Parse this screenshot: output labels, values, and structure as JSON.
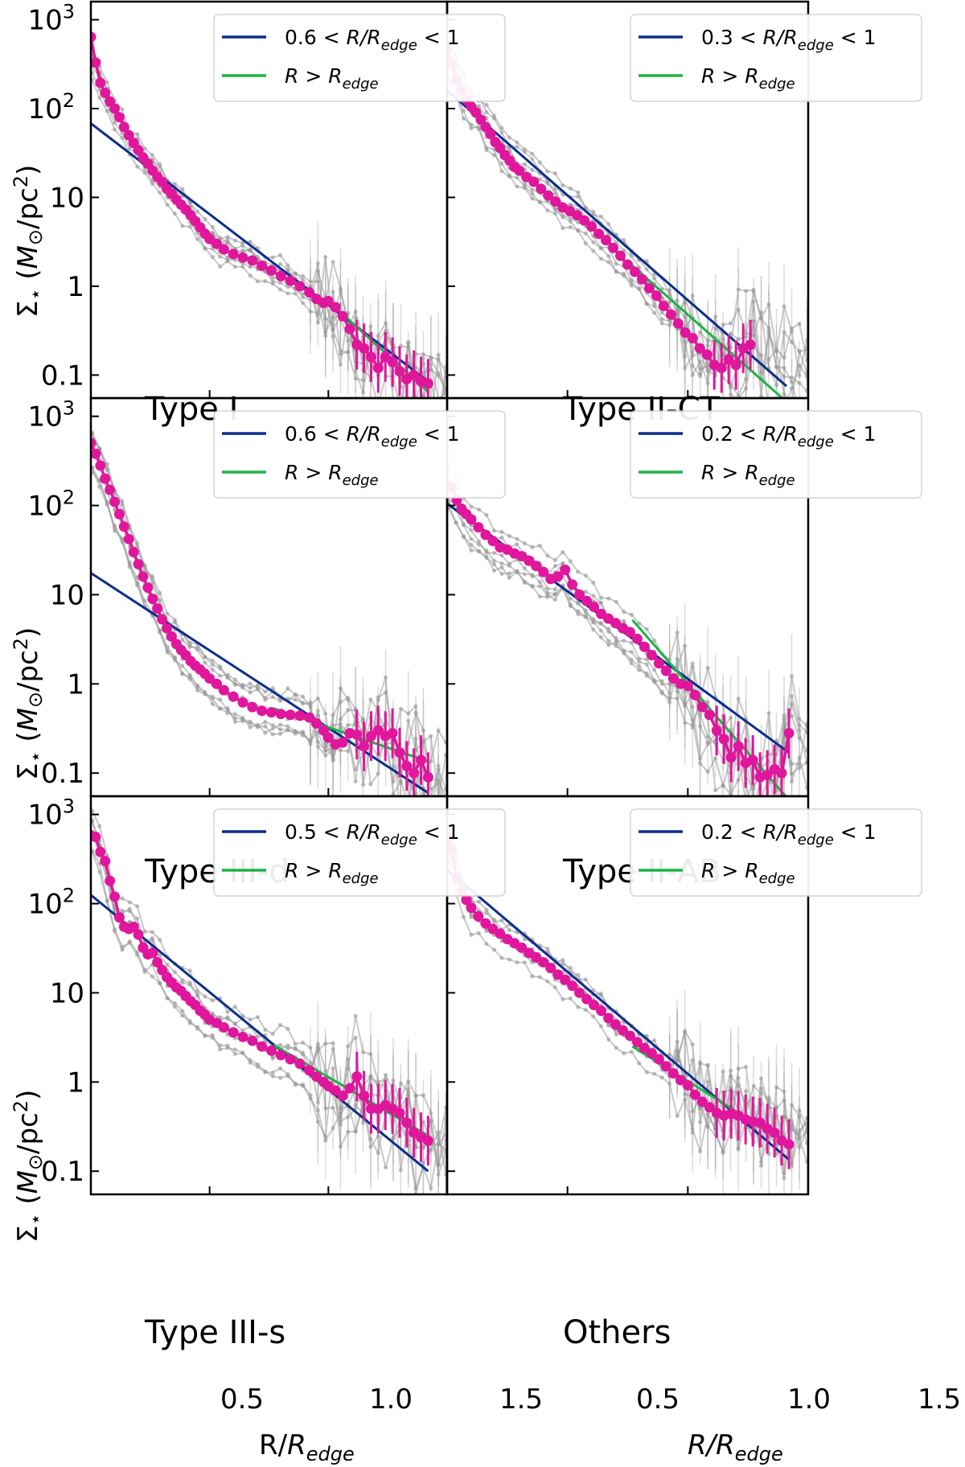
{
  "figure": {
    "ylabel": "Σ⋆ (M⊙/pc²)",
    "ylabel_main": "Σ",
    "ylabel_star": "⋆",
    "ylabel_rest1": " (",
    "ylabel_M": "M",
    "ylabel_sun": "⊙",
    "ylabel_rest2": "/pc",
    "ylabel_sup": "2",
    "ylabel_rest3": ")",
    "xlabel_left_R": "R/",
    "xlabel_right_R": "R/",
    "xlabel_R": "R",
    "xlabel_sub": "edge",
    "ytick_labels": [
      "0.1",
      "1",
      "10",
      "10",
      "10"
    ],
    "ytick_sup2": "2",
    "ytick_sup3": "3",
    "xtick_labels": [
      "0.5",
      "1.0",
      "1.5"
    ],
    "legend_blue_suffix": " < R/R",
    "legend_edge_sub": "edge",
    "legend_lt1": " < 1",
    "legend_green_prefix": "R > R"
  },
  "colors": {
    "blue": "#0d2d8c",
    "green": "#1db346",
    "magenta": "#e0169c",
    "gray": "#9a9a9a"
  },
  "chart_data": [
    {
      "type": "line",
      "panel": "Type I",
      "legend": {
        "blue_lo": "0.6",
        "blue": "0.6 < R/Redge < 1",
        "green": "R > Redge"
      },
      "xlim": [
        0,
        1.5
      ],
      "ylim": [
        0.055,
        1600
      ],
      "yscale": "log",
      "xlabel": "R/Redge",
      "ylabel": "Σ⋆ (M⊙/pc²)",
      "series": [
        {
          "name": "mean profile",
          "color": "magenta",
          "x": [
            0.0,
            0.02,
            0.04,
            0.06,
            0.08,
            0.1,
            0.12,
            0.14,
            0.16,
            0.18,
            0.2,
            0.22,
            0.24,
            0.26,
            0.28,
            0.3,
            0.32,
            0.34,
            0.36,
            0.38,
            0.4,
            0.42,
            0.44,
            0.46,
            0.48,
            0.5,
            0.53,
            0.56,
            0.6,
            0.64,
            0.68,
            0.72,
            0.76,
            0.8,
            0.84,
            0.88,
            0.92,
            0.95,
            0.98,
            1.0,
            1.03,
            1.06,
            1.09,
            1.12,
            1.15,
            1.18,
            1.21,
            1.24,
            1.27,
            1.3,
            1.33,
            1.36,
            1.39,
            1.42
          ],
          "y": [
            640,
            330,
            195,
            150,
            120,
            100,
            80,
            62,
            50,
            41,
            34,
            28,
            24,
            20,
            17,
            15,
            12.5,
            11,
            9.5,
            8.3,
            7.3,
            6.3,
            5.4,
            4.6,
            3.9,
            3.4,
            3.0,
            2.6,
            2.3,
            2.1,
            1.95,
            1.7,
            1.5,
            1.3,
            1.15,
            1.0,
            0.85,
            0.72,
            0.65,
            0.68,
            0.58,
            0.46,
            0.33,
            0.22,
            0.2,
            0.16,
            0.12,
            0.16,
            0.14,
            0.11,
            0.09,
            0.1,
            0.085,
            0.08
          ]
        },
        {
          "name": "0.6 < R/Redge < 1",
          "color": "blue",
          "x": [
            0.0,
            1.42
          ],
          "y": [
            68,
            0.085
          ]
        },
        {
          "name": "R > Redge",
          "color": "green",
          "x": [
            1.0,
            1.42
          ],
          "y": [
            0.68,
            0.065
          ]
        }
      ]
    },
    {
      "type": "line",
      "panel": "Type II-CT",
      "legend": {
        "blue_lo": "0.3",
        "blue": "0.3 < R/Redge < 1",
        "green": "R > Redge"
      },
      "xlim": [
        0,
        1.5
      ],
      "ylim": [
        0.055,
        1600
      ],
      "yscale": "log",
      "series": [
        {
          "name": "mean profile",
          "color": "magenta",
          "x": [
            0.0,
            0.02,
            0.04,
            0.06,
            0.08,
            0.1,
            0.12,
            0.14,
            0.16,
            0.18,
            0.2,
            0.22,
            0.24,
            0.26,
            0.28,
            0.3,
            0.33,
            0.36,
            0.39,
            0.42,
            0.45,
            0.48,
            0.51,
            0.54,
            0.57,
            0.6,
            0.63,
            0.66,
            0.69,
            0.72,
            0.75,
            0.78,
            0.81,
            0.84,
            0.87,
            0.9,
            0.93,
            0.96,
            0.99,
            1.02,
            1.05,
            1.08,
            1.11,
            1.14,
            1.17,
            1.2,
            1.23,
            1.26
          ],
          "y": [
            450,
            320,
            210,
            160,
            125,
            105,
            90,
            75,
            62,
            52,
            42,
            36,
            30,
            26,
            22,
            20,
            17,
            15,
            12.5,
            10.5,
            9,
            7.7,
            7,
            6.3,
            5.5,
            4.7,
            3.9,
            3.3,
            2.7,
            2.2,
            1.75,
            1.45,
            1.2,
            0.95,
            0.78,
            0.6,
            0.48,
            0.38,
            0.3,
            0.26,
            0.2,
            0.17,
            0.13,
            0.12,
            0.15,
            0.13,
            0.2,
            0.22
          ]
        },
        {
          "name": "0.3 < R/Redge < 1",
          "color": "blue",
          "x": [
            0.0,
            1.41
          ],
          "y": [
            160,
            0.075
          ]
        },
        {
          "name": "R > Redge",
          "color": "green",
          "x": [
            0.77,
            1.41
          ],
          "y": [
            1.7,
            0.05
          ]
        }
      ]
    },
    {
      "type": "line",
      "panel": "Type III-d",
      "legend": {
        "blue_lo": "0.6",
        "blue": "0.6 < R/Redge < 1",
        "green": "R > Redge"
      },
      "xlim": [
        0,
        1.5
      ],
      "ylim": [
        0.055,
        1600
      ],
      "yscale": "log",
      "series": [
        {
          "name": "mean profile",
          "color": "magenta",
          "x": [
            0.0,
            0.02,
            0.04,
            0.06,
            0.08,
            0.1,
            0.12,
            0.14,
            0.16,
            0.18,
            0.2,
            0.22,
            0.24,
            0.26,
            0.28,
            0.3,
            0.32,
            0.34,
            0.36,
            0.38,
            0.4,
            0.42,
            0.44,
            0.46,
            0.48,
            0.5,
            0.53,
            0.56,
            0.6,
            0.64,
            0.68,
            0.72,
            0.76,
            0.8,
            0.84,
            0.88,
            0.92,
            0.95,
            0.98,
            1.0,
            1.03,
            1.06,
            1.09,
            1.12,
            1.15,
            1.18,
            1.21,
            1.24,
            1.27,
            1.3,
            1.33,
            1.36,
            1.39,
            1.42
          ],
          "y": [
            500,
            380,
            280,
            200,
            150,
            110,
            80,
            58,
            42,
            30,
            22,
            16,
            12,
            9,
            7,
            5.3,
            4.2,
            3.4,
            2.8,
            2.4,
            2.1,
            1.8,
            1.6,
            1.45,
            1.3,
            1.15,
            1.0,
            0.85,
            0.72,
            0.62,
            0.55,
            0.5,
            0.48,
            0.46,
            0.45,
            0.44,
            0.42,
            0.36,
            0.3,
            0.25,
            0.21,
            0.22,
            0.28,
            0.27,
            0.2,
            0.26,
            0.3,
            0.26,
            0.28,
            0.17,
            0.12,
            0.1,
            0.14,
            0.09
          ]
        },
        {
          "name": "0.6 < R/Redge < 1",
          "color": "blue",
          "x": [
            0.0,
            1.42
          ],
          "y": [
            17.5,
            0.06
          ]
        },
        {
          "name": "R > Redge",
          "color": "green",
          "x": [
            0.77,
            1.42
          ],
          "y": [
            0.53,
            0.135
          ]
        }
      ]
    },
    {
      "type": "line",
      "panel": "Type II-AB",
      "legend": {
        "blue_lo": "0.2",
        "blue": "0.2 < R/Redge < 1",
        "green": "R > Redge"
      },
      "xlim": [
        0,
        1.5
      ],
      "ylim": [
        0.055,
        1600
      ],
      "yscale": "log",
      "series": [
        {
          "name": "mean profile",
          "color": "magenta",
          "x": [
            0.0,
            0.02,
            0.04,
            0.06,
            0.08,
            0.1,
            0.13,
            0.16,
            0.19,
            0.22,
            0.25,
            0.28,
            0.31,
            0.34,
            0.37,
            0.4,
            0.43,
            0.46,
            0.49,
            0.52,
            0.55,
            0.58,
            0.61,
            0.64,
            0.67,
            0.7,
            0.73,
            0.76,
            0.79,
            0.82,
            0.85,
            0.88,
            0.91,
            0.94,
            0.97,
            1.0,
            1.03,
            1.06,
            1.09,
            1.12,
            1.15,
            1.18,
            1.21,
            1.24,
            1.27,
            1.3,
            1.33,
            1.36,
            1.39,
            1.42
          ],
          "y": [
            160,
            160,
            115,
            92,
            80,
            70,
            57,
            47,
            40,
            34,
            32,
            29,
            27,
            24,
            21,
            18,
            15,
            16,
            19,
            13,
            10,
            8.5,
            7.3,
            6.1,
            5.4,
            4.8,
            4.2,
            3.8,
            3.2,
            2.6,
            2.1,
            1.7,
            1.4,
            1.15,
            1.0,
            0.95,
            0.75,
            0.55,
            0.45,
            0.3,
            0.24,
            0.15,
            0.2,
            0.13,
            0.14,
            0.09,
            0.095,
            0.11,
            0.1,
            0.28
          ]
        },
        {
          "name": "0.2 < R/Redge < 1",
          "color": "blue",
          "x": [
            0.0,
            1.42
          ],
          "y": [
            105,
            0.17
          ]
        },
        {
          "name": "R > Redge",
          "color": "green",
          "x": [
            0.77,
            1.42
          ],
          "y": [
            5.2,
            0.05
          ]
        }
      ]
    },
    {
      "type": "line",
      "panel": "Type III-s",
      "legend": {
        "blue_lo": "0.5",
        "blue": "0.5 < R/Redge < 1",
        "green": "R > Redge"
      },
      "xlim": [
        0,
        1.5
      ],
      "ylim": [
        0.055,
        1600
      ],
      "yscale": "log",
      "series": [
        {
          "name": "mean profile",
          "color": "magenta",
          "x": [
            0.0,
            0.02,
            0.04,
            0.06,
            0.08,
            0.1,
            0.12,
            0.14,
            0.16,
            0.18,
            0.2,
            0.22,
            0.24,
            0.26,
            0.28,
            0.3,
            0.32,
            0.34,
            0.36,
            0.38,
            0.4,
            0.42,
            0.44,
            0.46,
            0.48,
            0.5,
            0.53,
            0.56,
            0.6,
            0.64,
            0.68,
            0.72,
            0.76,
            0.8,
            0.84,
            0.88,
            0.92,
            0.95,
            0.98,
            1.0,
            1.03,
            1.06,
            1.09,
            1.12,
            1.15,
            1.18,
            1.21,
            1.24,
            1.27,
            1.3,
            1.33,
            1.36,
            1.39,
            1.42
          ],
          "y": [
            580,
            560,
            380,
            300,
            180,
            120,
            70,
            55,
            52,
            55,
            45,
            32,
            27,
            28,
            22,
            18,
            15,
            13,
            11.5,
            10.5,
            9.2,
            8.1,
            7.3,
            6.3,
            5.7,
            5.0,
            4.6,
            4.1,
            3.6,
            3.2,
            2.9,
            2.5,
            2.25,
            2.0,
            1.8,
            1.6,
            1.35,
            1.15,
            1.0,
            0.9,
            0.8,
            0.7,
            0.85,
            1.15,
            0.7,
            0.5,
            0.5,
            0.55,
            0.5,
            0.45,
            0.35,
            0.27,
            0.24,
            0.22
          ]
        },
        {
          "name": "0.5 < R/Redge < 1",
          "color": "blue",
          "x": [
            0.0,
            1.42
          ],
          "y": [
            125,
            0.1
          ]
        },
        {
          "name": "R > Redge",
          "color": "green",
          "x": [
            0.77,
            1.42
          ],
          "y": [
            2.6,
            0.25
          ]
        }
      ]
    },
    {
      "type": "line",
      "panel": "Others",
      "legend": {
        "blue_lo": "0.2",
        "blue": "0.2 < R/Redge < 1",
        "green": "R > Redge"
      },
      "xlim": [
        0,
        1.5
      ],
      "ylim": [
        0.055,
        1600
      ],
      "yscale": "log",
      "series": [
        {
          "name": "mean profile",
          "color": "magenta",
          "x": [
            0.0,
            0.02,
            0.04,
            0.06,
            0.08,
            0.1,
            0.13,
            0.16,
            0.19,
            0.22,
            0.25,
            0.28,
            0.31,
            0.34,
            0.37,
            0.4,
            0.43,
            0.46,
            0.49,
            0.52,
            0.55,
            0.58,
            0.61,
            0.64,
            0.67,
            0.7,
            0.73,
            0.76,
            0.79,
            0.82,
            0.85,
            0.88,
            0.91,
            0.94,
            0.97,
            1.0,
            1.03,
            1.06,
            1.09,
            1.12,
            1.15,
            1.18,
            1.21,
            1.24,
            1.27,
            1.3,
            1.33,
            1.36,
            1.39,
            1.42
          ],
          "y": [
            560,
            400,
            200,
            140,
            110,
            90,
            72,
            60,
            52,
            46,
            40,
            36,
            32,
            28,
            25,
            22,
            19,
            16,
            14,
            12,
            10,
            8.5,
            7.3,
            6.3,
            5.2,
            4.4,
            3.8,
            3.3,
            2.8,
            2.4,
            2.1,
            1.8,
            1.5,
            1.25,
            1.05,
            0.92,
            0.72,
            0.6,
            0.52,
            0.45,
            0.42,
            0.44,
            0.42,
            0.38,
            0.36,
            0.35,
            0.3,
            0.27,
            0.22,
            0.2
          ]
        },
        {
          "name": "0.2 < R/Redge < 1",
          "color": "blue",
          "x": [
            0.0,
            1.42
          ],
          "y": [
            240,
            0.135
          ]
        },
        {
          "name": "R > Redge",
          "color": "green",
          "x": [
            0.77,
            1.42
          ],
          "y": [
            2.5,
            0.2
          ]
        }
      ]
    }
  ]
}
